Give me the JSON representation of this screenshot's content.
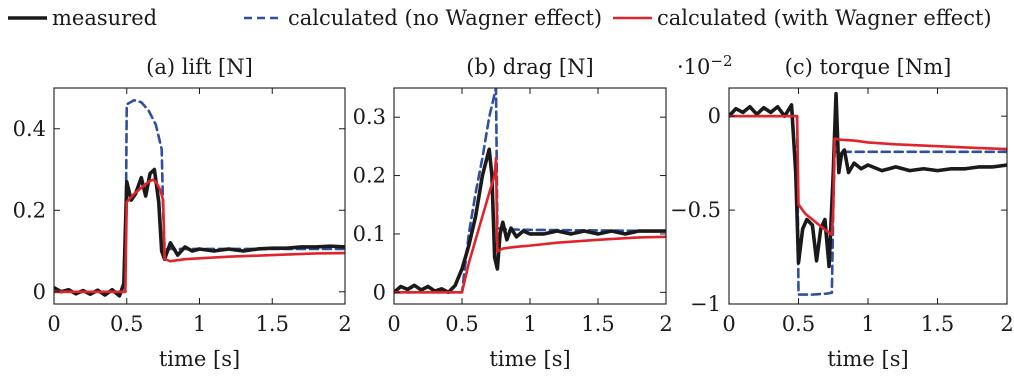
{
  "legend": {
    "placement": "top-center",
    "entries": [
      {
        "label": "measured",
        "color": "#1a1a1a",
        "style": "solid"
      },
      {
        "label": "calculated (no Wagner effect)",
        "color": "#2f4fa0",
        "style": "dashed"
      },
      {
        "label": "calculated (with Wagner effect)",
        "color": "#e0242b",
        "style": "solid"
      }
    ]
  },
  "chart_data": [
    {
      "type": "line",
      "title": "(a) lift [N]",
      "xlabel": "time [s]",
      "ylabel": "",
      "xlim": [
        0,
        2
      ],
      "ylim": [
        -0.03,
        0.5
      ],
      "xticks": [
        0,
        0.5,
        1,
        1.5,
        2
      ],
      "xtick_labels": [
        "0",
        "0.5",
        "1",
        "1.5",
        "2"
      ],
      "yticks": [
        0,
        0.2,
        0.4
      ],
      "ytick_labels": [
        "0",
        "0.2",
        "0.4"
      ],
      "scale_label": "",
      "grid": false,
      "series": [
        {
          "name": "measured",
          "x": [
            0,
            0.05,
            0.1,
            0.15,
            0.2,
            0.25,
            0.3,
            0.35,
            0.4,
            0.45,
            0.48,
            0.5,
            0.53,
            0.56,
            0.6,
            0.63,
            0.66,
            0.69,
            0.72,
            0.74,
            0.76,
            0.78,
            0.8,
            0.85,
            0.9,
            0.95,
            1.0,
            1.1,
            1.2,
            1.3,
            1.4,
            1.5,
            1.6,
            1.7,
            1.8,
            1.9,
            2.0
          ],
          "y": [
            0.01,
            0.0,
            0.005,
            -0.005,
            0.003,
            -0.006,
            0.004,
            -0.008,
            0.005,
            -0.01,
            0.02,
            0.27,
            0.225,
            0.24,
            0.28,
            0.235,
            0.29,
            0.3,
            0.22,
            0.1,
            0.08,
            0.1,
            0.12,
            0.09,
            0.11,
            0.1,
            0.105,
            0.1,
            0.105,
            0.1,
            0.105,
            0.107,
            0.107,
            0.11,
            0.11,
            0.112,
            0.11
          ]
        },
        {
          "name": "calculated (no Wagner effect)",
          "x": [
            0,
            0.49,
            0.5,
            0.55,
            0.6,
            0.65,
            0.7,
            0.74,
            0.75,
            0.76,
            0.8,
            1.0,
            1.5,
            2.0
          ],
          "y": [
            0,
            0,
            0.46,
            0.47,
            0.465,
            0.445,
            0.41,
            0.35,
            0.2,
            0.105,
            0.105,
            0.105,
            0.105,
            0.105
          ]
        },
        {
          "name": "calculated (with Wagner effect)",
          "x": [
            0,
            0.49,
            0.5,
            0.55,
            0.6,
            0.65,
            0.68,
            0.7,
            0.73,
            0.75,
            0.76,
            0.8,
            0.9,
            1.0,
            1.2,
            1.5,
            1.8,
            2.0
          ],
          "y": [
            0,
            0,
            0.22,
            0.24,
            0.255,
            0.27,
            0.275,
            0.27,
            0.25,
            0.225,
            0.08,
            0.075,
            0.08,
            0.082,
            0.086,
            0.09,
            0.094,
            0.095
          ]
        }
      ]
    },
    {
      "type": "line",
      "title": "(b) drag [N]",
      "xlabel": "time [s]",
      "ylabel": "",
      "xlim": [
        0,
        2
      ],
      "ylim": [
        -0.02,
        0.35
      ],
      "xticks": [
        0,
        0.5,
        1,
        1.5,
        2
      ],
      "xtick_labels": [
        "0",
        "0.5",
        "1",
        "1.5",
        "2"
      ],
      "yticks": [
        0,
        0.1,
        0.2,
        0.3
      ],
      "ytick_labels": [
        "0",
        "0.1",
        "0.2",
        "0.3"
      ],
      "scale_label": "",
      "grid": false,
      "series": [
        {
          "name": "measured",
          "x": [
            0,
            0.05,
            0.1,
            0.15,
            0.2,
            0.25,
            0.3,
            0.35,
            0.4,
            0.45,
            0.5,
            0.55,
            0.6,
            0.65,
            0.7,
            0.72,
            0.74,
            0.76,
            0.78,
            0.8,
            0.83,
            0.86,
            0.9,
            0.95,
            1.0,
            1.1,
            1.2,
            1.3,
            1.4,
            1.5,
            1.6,
            1.7,
            1.8,
            1.9,
            2.0
          ],
          "y": [
            0,
            0.01,
            0.005,
            0.012,
            0.004,
            0.01,
            0.002,
            0.006,
            0.0,
            0.012,
            0.04,
            0.08,
            0.13,
            0.2,
            0.245,
            0.2,
            0.06,
            0.04,
            0.1,
            0.12,
            0.09,
            0.11,
            0.095,
            0.105,
            0.1,
            0.1,
            0.105,
            0.1,
            0.105,
            0.1,
            0.105,
            0.1,
            0.105,
            0.105,
            0.105
          ]
        },
        {
          "name": "calculated (no Wagner effect)",
          "x": [
            0,
            0.5,
            0.55,
            0.6,
            0.65,
            0.7,
            0.75,
            0.76,
            0.8,
            1.0,
            1.5,
            2.0
          ],
          "y": [
            0,
            0.0,
            0.1,
            0.17,
            0.23,
            0.3,
            0.35,
            0.11,
            0.108,
            0.107,
            0.106,
            0.105
          ]
        },
        {
          "name": "calculated (with Wagner effect)",
          "x": [
            0,
            0.5,
            0.55,
            0.6,
            0.65,
            0.7,
            0.74,
            0.75,
            0.76,
            0.8,
            0.9,
            1.0,
            1.2,
            1.5,
            1.8,
            2.0
          ],
          "y": [
            0,
            0.0,
            0.05,
            0.09,
            0.13,
            0.17,
            0.2,
            0.23,
            0.07,
            0.075,
            0.078,
            0.08,
            0.085,
            0.09,
            0.094,
            0.095
          ]
        }
      ]
    },
    {
      "type": "line",
      "title": "(c) torque [Nm]",
      "xlabel": "time [s]",
      "ylabel": "",
      "xlim": [
        0,
        2
      ],
      "ylim": [
        -1.0,
        0.15
      ],
      "xticks": [
        0,
        0.5,
        1,
        1.5,
        2
      ],
      "xtick_labels": [
        "0",
        "0.5",
        "1",
        "1.5",
        "2"
      ],
      "yticks": [
        -1,
        -0.5,
        0
      ],
      "ytick_labels": [
        "−1",
        "−0.5",
        "0"
      ],
      "scale_label": "·10−2",
      "grid": false,
      "series": [
        {
          "name": "measured",
          "x": [
            0,
            0.05,
            0.1,
            0.15,
            0.2,
            0.25,
            0.3,
            0.35,
            0.4,
            0.45,
            0.48,
            0.5,
            0.53,
            0.56,
            0.6,
            0.63,
            0.66,
            0.69,
            0.72,
            0.75,
            0.77,
            0.79,
            0.81,
            0.83,
            0.86,
            0.9,
            0.95,
            1.0,
            1.1,
            1.2,
            1.3,
            1.4,
            1.5,
            1.6,
            1.7,
            1.8,
            1.9,
            2.0
          ],
          "y": [
            0.0,
            0.04,
            0.02,
            0.05,
            0.01,
            0.045,
            0.02,
            0.05,
            0.0,
            0.06,
            -0.3,
            -0.78,
            -0.6,
            -0.55,
            -0.58,
            -0.77,
            -0.6,
            -0.55,
            -0.8,
            -0.3,
            0.12,
            -0.3,
            -0.2,
            -0.18,
            -0.3,
            -0.25,
            -0.28,
            -0.26,
            -0.29,
            -0.27,
            -0.29,
            -0.28,
            -0.29,
            -0.28,
            -0.28,
            -0.27,
            -0.27,
            -0.26
          ]
        },
        {
          "name": "calculated (no Wagner effect)",
          "x": [
            0,
            0.49,
            0.5,
            0.52,
            0.6,
            0.7,
            0.74,
            0.75,
            0.76,
            0.8,
            1.0,
            1.5,
            2.0
          ],
          "y": [
            0,
            0,
            -0.95,
            -0.95,
            -0.95,
            -0.945,
            -0.94,
            -0.5,
            -0.19,
            -0.19,
            -0.19,
            -0.19,
            -0.19
          ]
        },
        {
          "name": "calculated (with Wagner effect)",
          "x": [
            0,
            0.49,
            0.5,
            0.55,
            0.6,
            0.65,
            0.7,
            0.74,
            0.75,
            0.76,
            0.8,
            0.9,
            1.0,
            1.2,
            1.5,
            1.8,
            2.0
          ],
          "y": [
            0,
            0,
            -0.47,
            -0.52,
            -0.55,
            -0.58,
            -0.61,
            -0.63,
            -0.5,
            -0.12,
            -0.125,
            -0.13,
            -0.14,
            -0.15,
            -0.16,
            -0.17,
            -0.175
          ]
        }
      ]
    }
  ]
}
